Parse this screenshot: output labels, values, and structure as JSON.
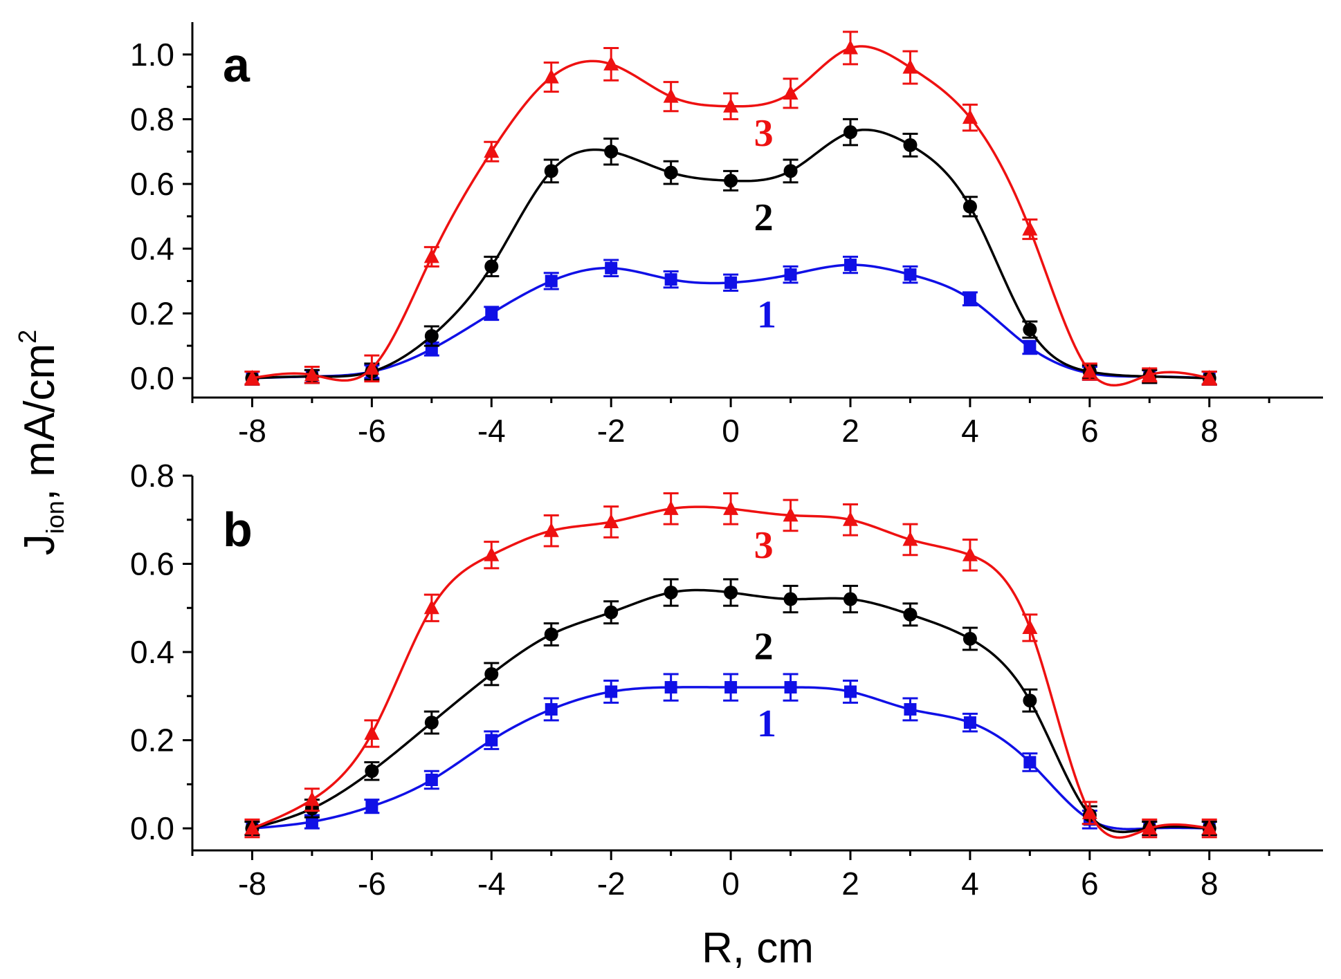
{
  "chart_data": {
    "type": "line",
    "y_axis_title": {
      "main": "J",
      "sub": "ion",
      "after": ", mA/cm",
      "sup": "2"
    },
    "x_axis_title": "R, cm",
    "xlim": [
      -9,
      9.9
    ],
    "x_ticks": [
      -8,
      -6,
      -4,
      -2,
      0,
      2,
      4,
      6,
      8
    ],
    "x_tick_labels": [
      "-8",
      "-6",
      "-4",
      "-2",
      "0",
      "2",
      "4",
      "6",
      "8"
    ],
    "x_minor_ticks": [
      -9,
      -7,
      -5,
      -3,
      -1,
      1,
      3,
      5,
      7,
      9
    ],
    "x": [
      -8,
      -7,
      -6,
      -5,
      -4,
      -3,
      -2,
      -1,
      0,
      1,
      2,
      3,
      4,
      5,
      6,
      7,
      8
    ],
    "colors": {
      "1": "#1010e6",
      "2": "#000000",
      "3": "#ee1111"
    },
    "markers": {
      "1": "square",
      "2": "circle",
      "3": "triangle"
    },
    "panels": [
      {
        "label": "a",
        "ylim": [
          -0.06,
          1.1
        ],
        "y_ticks": [
          0.0,
          0.2,
          0.4,
          0.6,
          0.8,
          1.0
        ],
        "y_tick_labels": [
          "0.0",
          "0.2",
          "0.4",
          "0.6",
          "0.8",
          "1.0"
        ],
        "y_minor_ticks": [
          0.1,
          0.3,
          0.5,
          0.7,
          0.9
        ],
        "series": [
          {
            "name": "1",
            "label": "1",
            "label_at": [
              0.6,
              0.2
            ],
            "values": [
              0.0,
              0.005,
              0.02,
              0.09,
              0.2,
              0.3,
              0.34,
              0.305,
              0.295,
              0.32,
              0.35,
              0.32,
              0.245,
              0.095,
              0.015,
              0.005,
              0.0
            ],
            "errors": [
              0.02,
              0.02,
              0.02,
              0.02,
              0.02,
              0.025,
              0.025,
              0.025,
              0.025,
              0.025,
              0.025,
              0.025,
              0.02,
              0.02,
              0.02,
              0.02,
              0.02
            ]
          },
          {
            "name": "2",
            "label": "2",
            "label_at": [
              0.55,
              0.5
            ],
            "values": [
              0.0,
              0.005,
              0.02,
              0.13,
              0.345,
              0.64,
              0.7,
              0.635,
              0.61,
              0.64,
              0.76,
              0.72,
              0.53,
              0.15,
              0.02,
              0.005,
              0.0
            ],
            "errors": [
              0.02,
              0.02,
              0.025,
              0.03,
              0.03,
              0.035,
              0.04,
              0.035,
              0.03,
              0.035,
              0.04,
              0.035,
              0.03,
              0.025,
              0.02,
              0.02,
              0.02
            ]
          },
          {
            "name": "3",
            "label": "3",
            "label_at": [
              0.55,
              0.76
            ],
            "values": [
              0.0,
              0.01,
              0.03,
              0.375,
              0.7,
              0.93,
              0.97,
              0.87,
              0.84,
              0.88,
              1.02,
              0.96,
              0.805,
              0.46,
              0.02,
              0.01,
              0.0
            ],
            "errors": [
              0.02,
              0.025,
              0.04,
              0.03,
              0.03,
              0.045,
              0.05,
              0.045,
              0.04,
              0.045,
              0.05,
              0.05,
              0.04,
              0.03,
              0.025,
              0.02,
              0.02
            ]
          }
        ]
      },
      {
        "label": "b",
        "ylim": [
          -0.05,
          0.8
        ],
        "y_ticks": [
          0.0,
          0.2,
          0.4,
          0.6,
          0.8
        ],
        "y_tick_labels": [
          "0.0",
          "0.2",
          "0.4",
          "0.6",
          "0.8"
        ],
        "y_minor_ticks": [
          0.1,
          0.3,
          0.5,
          0.7
        ],
        "series": [
          {
            "name": "1",
            "label": "1",
            "label_at": [
              0.6,
              0.24
            ],
            "values": [
              0.0,
              0.015,
              0.05,
              0.11,
              0.2,
              0.27,
              0.31,
              0.32,
              0.32,
              0.32,
              0.31,
              0.27,
              0.24,
              0.15,
              0.02,
              0.0,
              0.0
            ],
            "errors": [
              0.015,
              0.015,
              0.015,
              0.02,
              0.02,
              0.025,
              0.025,
              0.03,
              0.03,
              0.03,
              0.025,
              0.025,
              0.02,
              0.02,
              0.02,
              0.015,
              0.015
            ]
          },
          {
            "name": "2",
            "label": "2",
            "label_at": [
              0.55,
              0.415
            ],
            "values": [
              0.0,
              0.045,
              0.13,
              0.24,
              0.35,
              0.44,
              0.49,
              0.535,
              0.535,
              0.52,
              0.52,
              0.485,
              0.43,
              0.29,
              0.03,
              0.0,
              0.0
            ],
            "errors": [
              0.015,
              0.02,
              0.02,
              0.025,
              0.025,
              0.025,
              0.025,
              0.03,
              0.03,
              0.03,
              0.03,
              0.025,
              0.025,
              0.025,
              0.02,
              0.015,
              0.015
            ]
          },
          {
            "name": "3",
            "label": "3",
            "label_at": [
              0.55,
              0.645
            ],
            "values": [
              0.0,
              0.065,
              0.215,
              0.5,
              0.62,
              0.675,
              0.695,
              0.725,
              0.725,
              0.71,
              0.7,
              0.655,
              0.62,
              0.455,
              0.035,
              0.0,
              0.0
            ],
            "errors": [
              0.02,
              0.025,
              0.03,
              0.03,
              0.03,
              0.035,
              0.035,
              0.035,
              0.035,
              0.035,
              0.035,
              0.035,
              0.035,
              0.03,
              0.025,
              0.02,
              0.02
            ]
          }
        ]
      }
    ]
  }
}
